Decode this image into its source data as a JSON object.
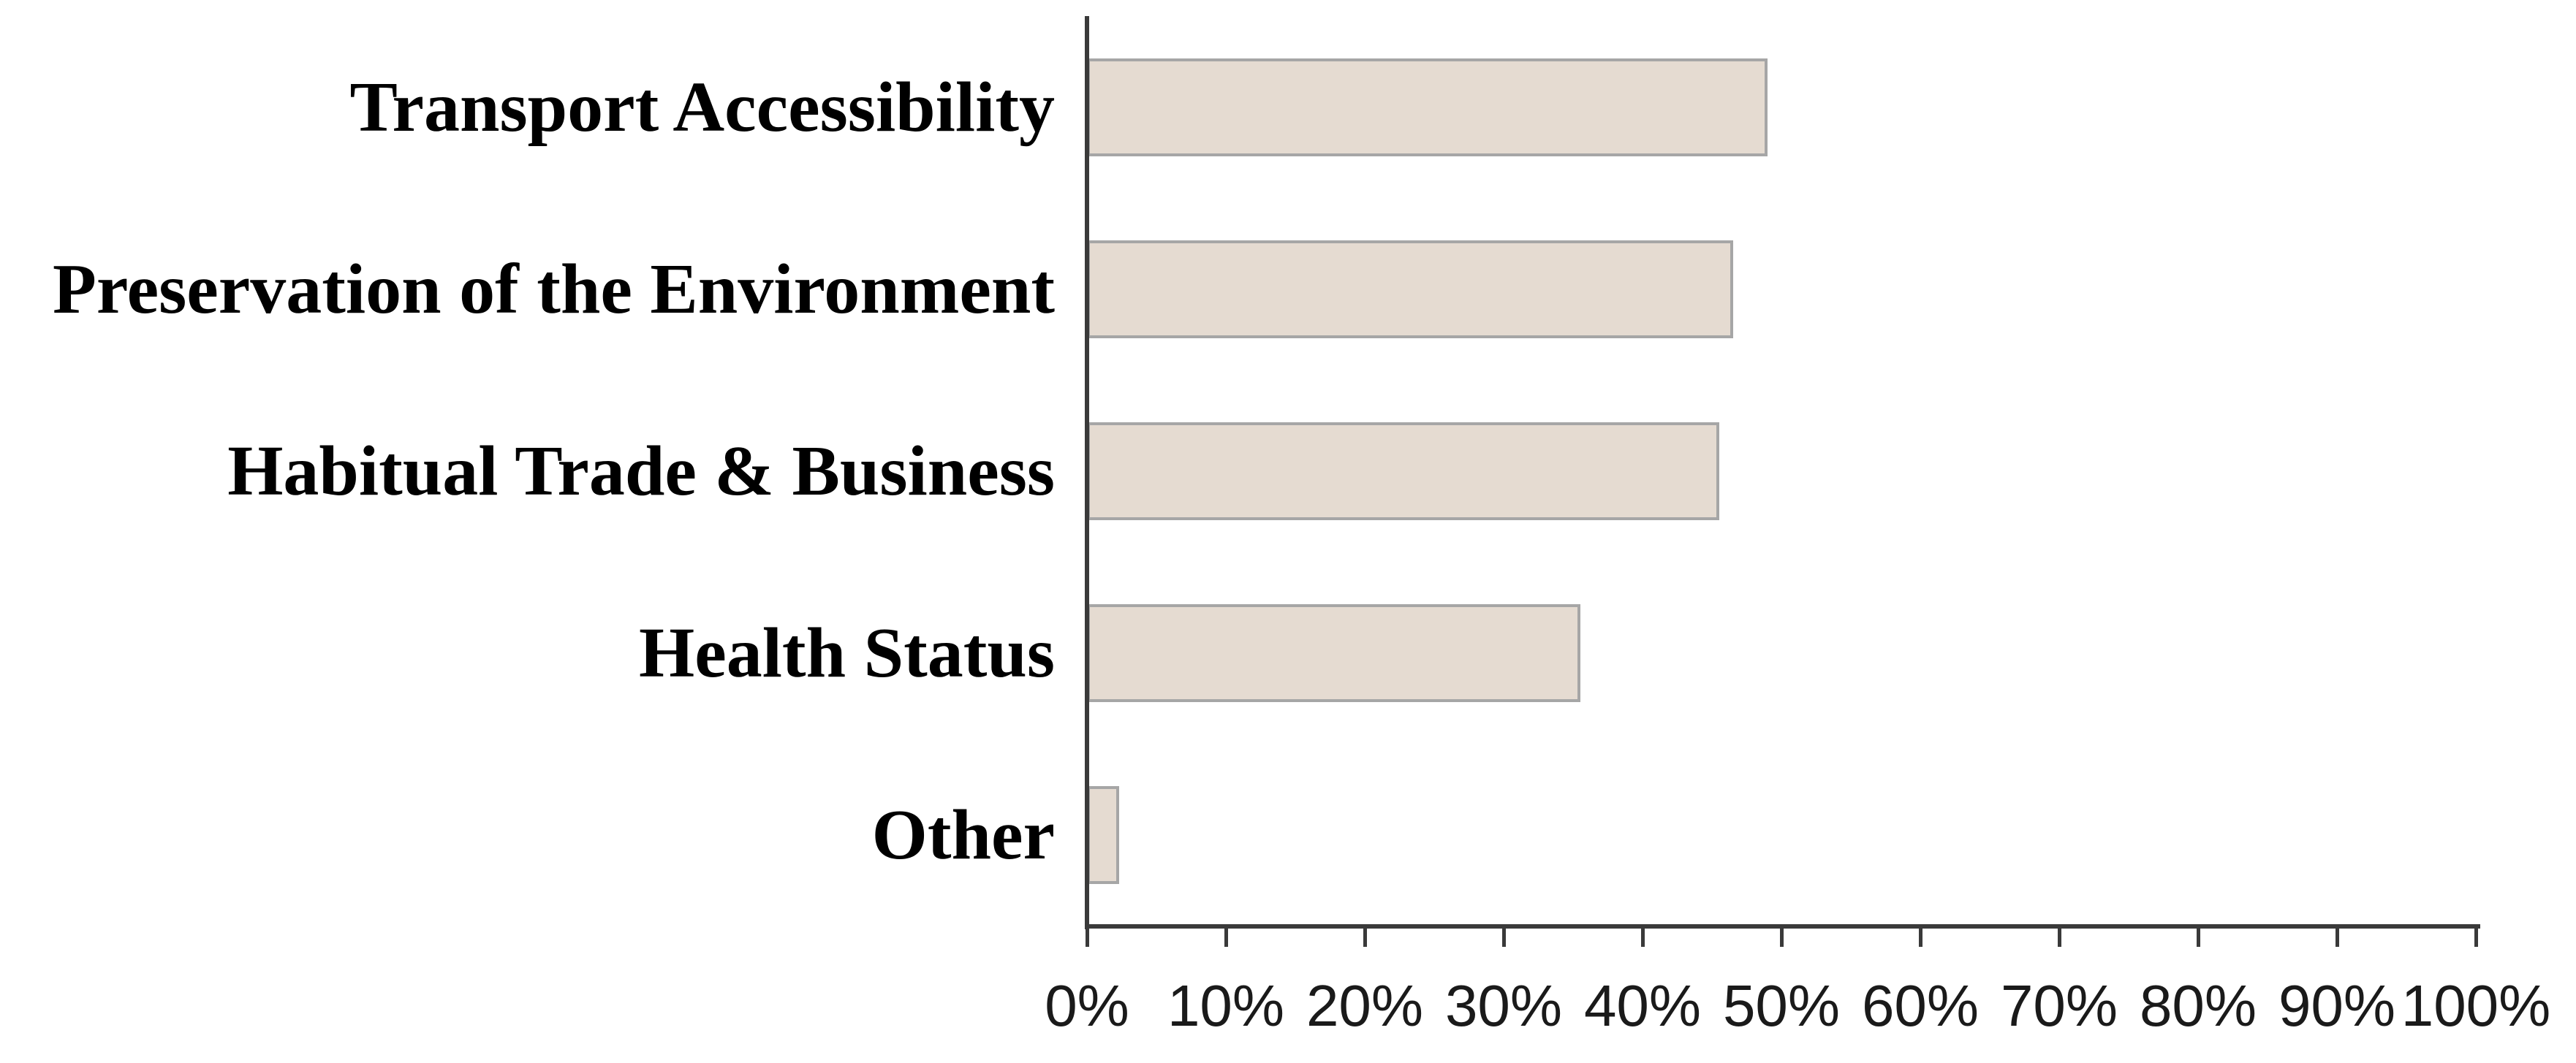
{
  "chart_data": {
    "type": "bar",
    "orientation": "horizontal",
    "title": "",
    "categories": [
      "Transport Accessibility",
      "Preservation of the Environment",
      "Habitual Trade & Business",
      "Health Status",
      "Other"
    ],
    "values": [
      49,
      46.5,
      45.5,
      35.5,
      2.3
    ],
    "unit": "%",
    "xlabel": "",
    "ylabel": "",
    "xlim": [
      0,
      100
    ],
    "x_ticks": [
      "0%",
      "10%",
      "20%",
      "30%",
      "40%",
      "50%",
      "60%",
      "70%",
      "80%",
      "90%",
      "100%"
    ],
    "grid": false,
    "legend": false,
    "colors": {
      "bar_fill": "#e5dbd1",
      "bar_border": "#a6a6a6",
      "axis": "#3a3a3a",
      "category_label": "#000000",
      "tick_label": "#1a1a1a",
      "background": "#ffffff"
    }
  }
}
